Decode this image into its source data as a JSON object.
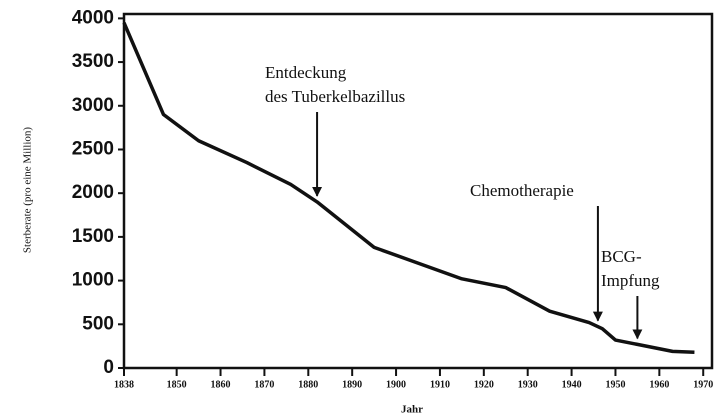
{
  "chart_data": {
    "type": "line",
    "x_label": "Jahr",
    "y_label": "Sterberate (pro eine Million)",
    "x": [
      1838,
      1847,
      1855,
      1866,
      1876,
      1882,
      1895,
      1905,
      1915,
      1925,
      1935,
      1944,
      1947,
      1950,
      1955,
      1960,
      1963,
      1968
    ],
    "series": [
      {
        "color": "#111111",
        "values": [
          3950,
          2900,
          2600,
          2350,
          2100,
          1900,
          1380,
          1200,
          1020,
          920,
          650,
          520,
          450,
          320,
          270,
          220,
          190,
          180
        ]
      }
    ],
    "xlim": [
      1838,
      1972
    ],
    "xticks": [
      1838,
      1850,
      1860,
      1870,
      1880,
      1890,
      1900,
      1910,
      1920,
      1930,
      1940,
      1950,
      1960,
      1970
    ],
    "ylim": [
      0,
      4050
    ],
    "yticks": [
      0,
      500,
      1000,
      1500,
      2000,
      2500,
      3000,
      3500,
      4000
    ],
    "annotations": [
      {
        "lines": [
          "Entdeckung",
          "des Tuberkelbazillus"
        ],
        "x": 1882
      },
      {
        "lines": [
          "Chemotherapie"
        ],
        "x": 1946
      },
      {
        "lines": [
          "BCG-",
          "Impfung"
        ],
        "x": 1955
      }
    ]
  }
}
